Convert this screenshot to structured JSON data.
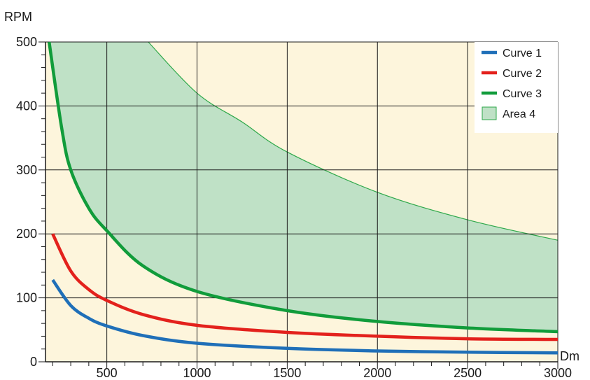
{
  "chart_data": {
    "type": "line",
    "xlabel": "Dm",
    "ylabel": "RPM",
    "xlim": [
      160,
      3000
    ],
    "ylim": [
      0,
      500
    ],
    "x_ticks": [
      500,
      1000,
      1500,
      2000,
      2500,
      3000
    ],
    "y_ticks": [
      0,
      100,
      200,
      300,
      400,
      500
    ],
    "x_tick_labels": [
      "500",
      "1000",
      "1500",
      "2000",
      "2500",
      "3000"
    ],
    "y_tick_labels": [
      "0",
      "100",
      "200",
      "300",
      "400",
      "500"
    ],
    "grid": true,
    "legend_position": "top-right",
    "background_color": "#fdf5dc",
    "series": [
      {
        "name": "Curve 1",
        "color": "#1f6fb8",
        "x": [
          200,
          300,
          400,
          500,
          700,
          1000,
          1500,
          2000,
          2500,
          3000
        ],
        "y": [
          128,
          88,
          68,
          56,
          41,
          29,
          21,
          17,
          15,
          14
        ]
      },
      {
        "name": "Curve 2",
        "color": "#e3211c",
        "x": [
          200,
          300,
          400,
          500,
          700,
          1000,
          1500,
          2000,
          2500,
          3000
        ],
        "y": [
          200,
          142,
          113,
          96,
          74,
          57,
          46,
          40,
          36,
          35
        ]
      },
      {
        "name": "Curve 3",
        "color": "#119c3b",
        "x": [
          180,
          250,
          300,
          400,
          500,
          700,
          1000,
          1500,
          2000,
          2500,
          3000
        ],
        "y": [
          500,
          365,
          300,
          240,
          205,
          150,
          110,
          80,
          63,
          53,
          47
        ]
      }
    ],
    "areas": [
      {
        "name": "Area 4",
        "fill": "#bfe1c6",
        "edge": "#2ea84a",
        "lower_series": "Curve 3",
        "upper_x": [
          730,
          1000,
          1250,
          1500,
          2000,
          2500,
          3000
        ],
        "upper_y": [
          500,
          420,
          375,
          328,
          265,
          222,
          190
        ]
      }
    ]
  }
}
